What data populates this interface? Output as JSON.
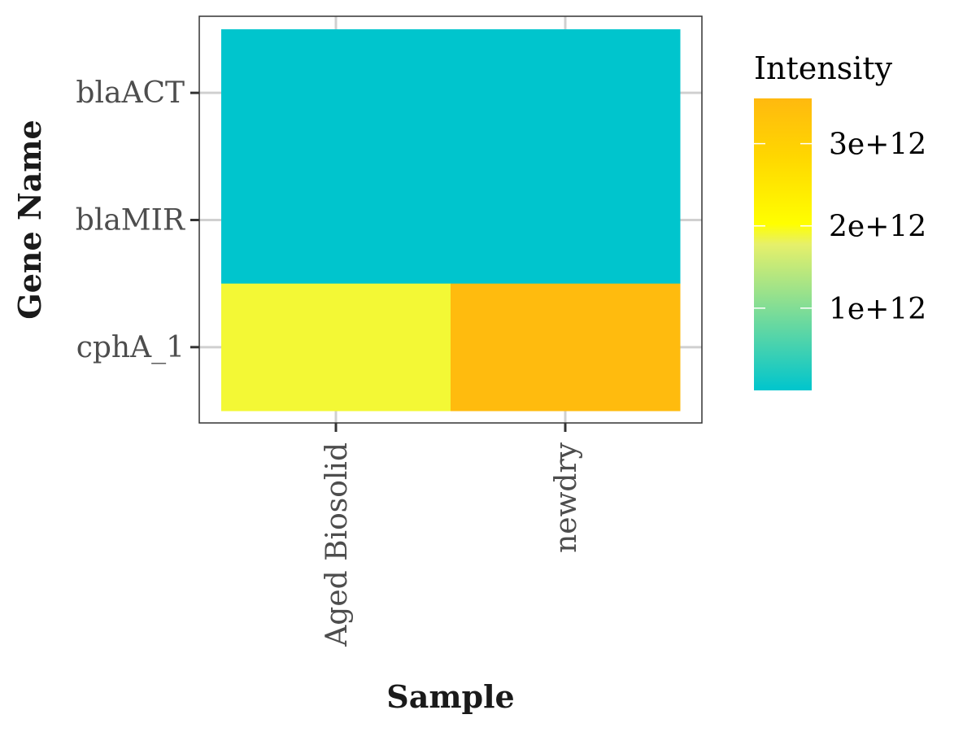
{
  "chart_data": {
    "type": "heatmap",
    "xlabel": "Sample",
    "ylabel": "Gene Name",
    "x_categories": [
      "Aged Biosolid",
      "newdry"
    ],
    "y_categories": [
      "blaACT",
      "blaMIR",
      "cphA_1"
    ],
    "values": [
      [
        1000000000.0,
        2000000000.0
      ],
      [
        1000000000.0,
        1500000000.0
      ],
      [
        1900000000000.0,
        3500000000000.0
      ]
    ],
    "legend": {
      "title": "Intensity",
      "ticks": [
        {
          "value": 1000000000000.0,
          "label": "1e+12"
        },
        {
          "value": 2000000000000.0,
          "label": "2e+12"
        },
        {
          "value": 3000000000000.0,
          "label": "3e+12"
        }
      ],
      "range": [
        0,
        3550000000000.0
      ],
      "placement": "right"
    },
    "colorscale": [
      {
        "stop": 0.0,
        "color": "#00c5cd"
      },
      {
        "stop": 0.5,
        "color": "#e6f06a"
      },
      {
        "stop": 0.57,
        "color": "#ffff00"
      },
      {
        "stop": 0.8,
        "color": "#ffd700"
      },
      {
        "stop": 1.0,
        "color": "#ffb90f"
      }
    ],
    "grid": true
  }
}
